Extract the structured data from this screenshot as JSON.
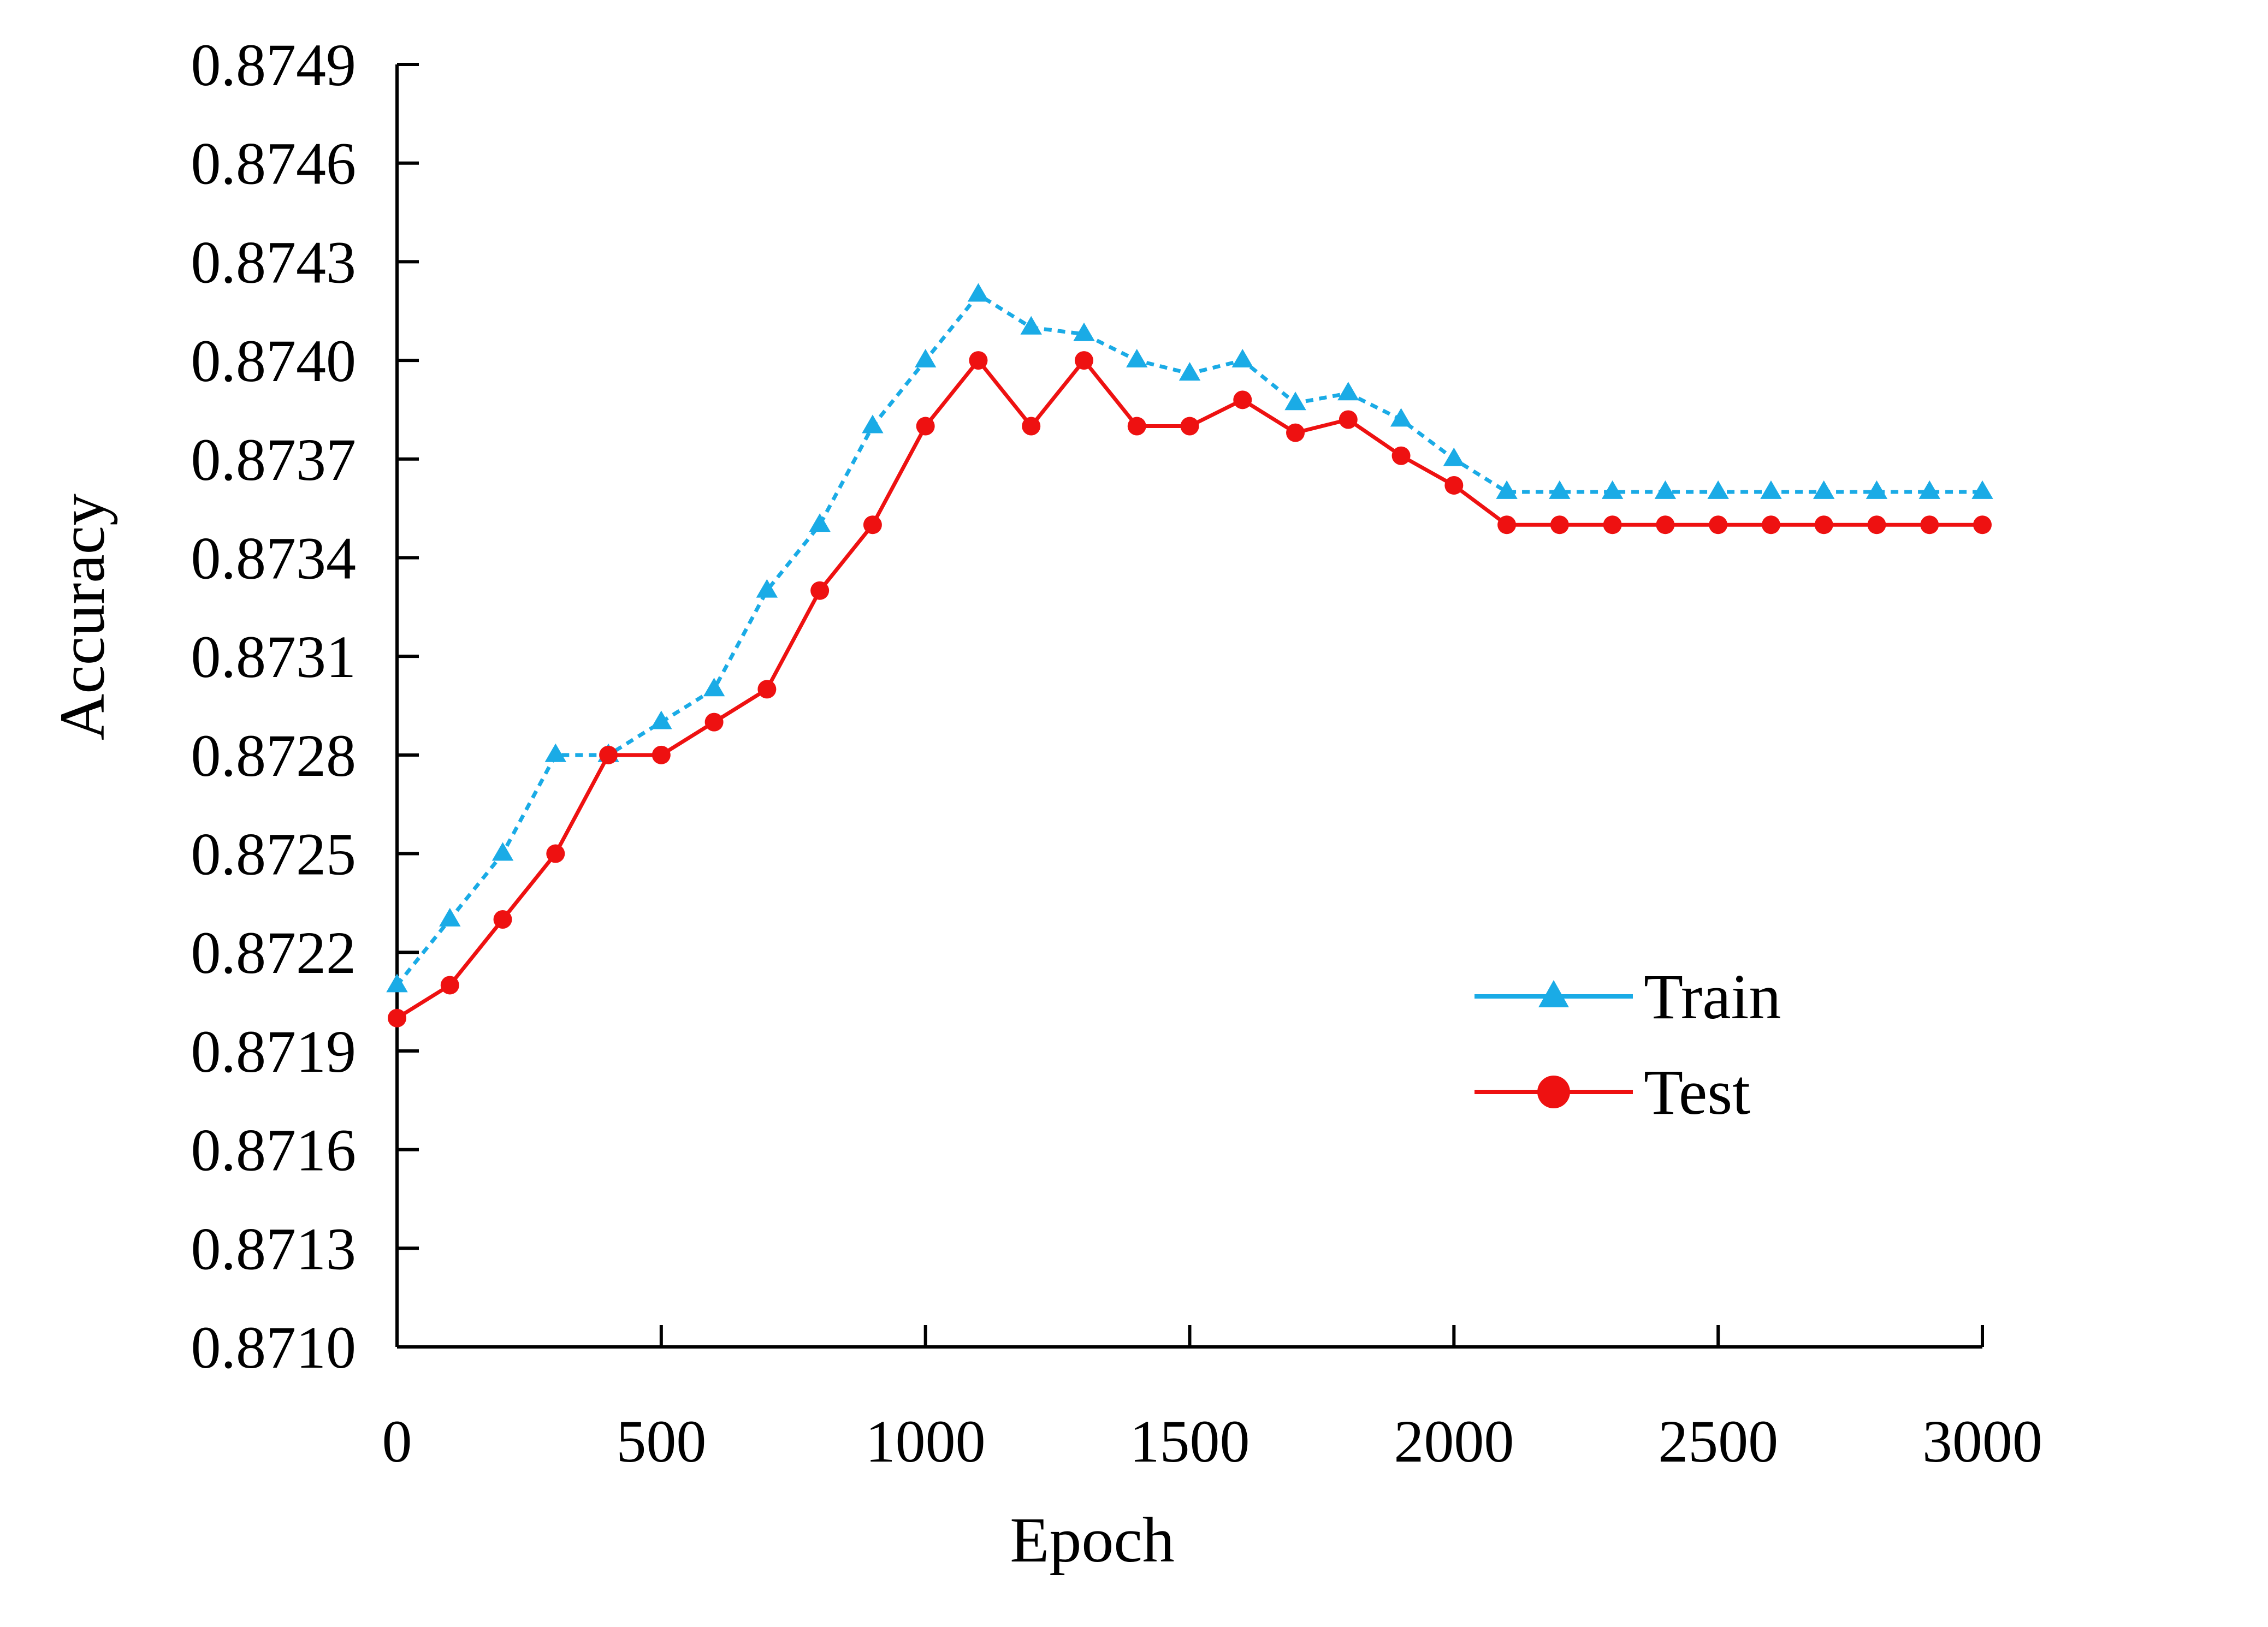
{
  "chart_data": {
    "type": "line",
    "xlabel": "Epoch",
    "ylabel": "Accuracy",
    "xlim": [
      0,
      3000
    ],
    "ylim": [
      0.871,
      0.8749
    ],
    "x_ticks": [
      "0",
      "500",
      "1000",
      "1500",
      "2000",
      "2500",
      "3000"
    ],
    "x_tick_values": [
      0,
      500,
      1000,
      1500,
      2000,
      2500,
      3000
    ],
    "y_ticks": [
      "0.8710",
      "0.8713",
      "0.8716",
      "0.8719",
      "0.8722",
      "0.8725",
      "0.8728",
      "0.8731",
      "0.8734",
      "0.8737",
      "0.8740",
      "0.8743",
      "0.8746",
      "0.8749"
    ],
    "y_tick_values": [
      0.871,
      0.8713,
      0.8716,
      0.8719,
      0.8722,
      0.8725,
      0.8728,
      0.8731,
      0.8734,
      0.8737,
      0.874,
      0.8743,
      0.8746,
      0.8749
    ],
    "grid": false,
    "legend_position": "bottom-right",
    "x": [
      0,
      100,
      200,
      300,
      400,
      500,
      600,
      700,
      800,
      900,
      1000,
      1100,
      1200,
      1300,
      1400,
      1500,
      1600,
      1700,
      1800,
      1900,
      2000,
      2100,
      2200,
      2300,
      2400,
      2500,
      2600,
      2700,
      2800,
      2900,
      3000
    ],
    "series": [
      {
        "name": "Train",
        "color": "#1aabe6",
        "line_style": "dotted",
        "marker": "triangle",
        "values": [
          0.8721,
          0.8723,
          0.8725,
          0.8728,
          0.8728,
          0.8729,
          0.873,
          0.8733,
          0.8735,
          0.8738,
          0.874,
          0.8742,
          0.8741,
          0.87408,
          0.874,
          0.87396,
          0.874,
          0.87387,
          0.8739,
          0.87382,
          0.8737,
          0.8736,
          0.8736,
          0.8736,
          0.8736,
          0.8736,
          0.8736,
          0.8736,
          0.8736,
          0.8736,
          0.8736
        ]
      },
      {
        "name": "Test",
        "color": "#ee1111",
        "line_style": "solid",
        "marker": "circle",
        "values": [
          0.872,
          0.8721,
          0.8723,
          0.8725,
          0.8728,
          0.8728,
          0.8729,
          0.873,
          0.8733,
          0.8735,
          0.8738,
          0.874,
          0.8738,
          0.874,
          0.8738,
          0.8738,
          0.87388,
          0.87378,
          0.87382,
          0.87371,
          0.87362,
          0.8735,
          0.8735,
          0.8735,
          0.8735,
          0.8735,
          0.8735,
          0.8735,
          0.8735,
          0.8735,
          0.8735
        ]
      }
    ]
  }
}
